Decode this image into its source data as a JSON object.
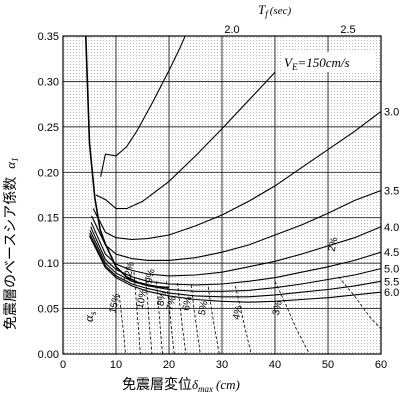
{
  "chart_data": {
    "type": "line",
    "xlabel": "免震層変位",
    "xlabel_symbol": "δ",
    "xlabel_subscript": "max",
    "xlabel_unit": "(cm)",
    "ylabel": "免震層のベースシア係数",
    "ylabel_symbol": "α",
    "ylabel_subscript": "1",
    "top_axis_symbol": "T",
    "top_axis_subscript": "f",
    "top_axis_unit": "(sec)",
    "xlim": [
      0,
      60
    ],
    "ylim": [
      0,
      0.35
    ],
    "x_ticks": [
      0,
      10,
      20,
      30,
      40,
      50,
      60
    ],
    "x_tick_labels": [
      "0",
      "10",
      "20",
      "30",
      "40",
      "50",
      "60"
    ],
    "y_ticks": [
      0,
      0.05,
      0.1,
      0.15,
      0.2,
      0.25,
      0.3,
      0.35
    ],
    "y_tick_labels": [
      "0.00",
      "0.05",
      "0.10",
      "0.15",
      "0.20",
      "0.25",
      "0.30",
      "0.35"
    ],
    "grid": true,
    "annotation": {
      "prefix": "V",
      "subscript": "E",
      "text": "=150cm/s"
    },
    "alpha_label": {
      "symbol": "α",
      "subscript": "s"
    },
    "period_lines": [
      {
        "label": "2.0",
        "T": 2.0
      },
      {
        "label": "2.5",
        "T": 2.5
      },
      {
        "label": "3.0",
        "T": 3.0
      },
      {
        "label": "3.5",
        "T": 3.5
      },
      {
        "label": "4.0",
        "T": 4.0
      },
      {
        "label": "4.5",
        "T": 4.5
      },
      {
        "label": "5.0",
        "T": 5.0
      },
      {
        "label": "5.5",
        "T": 5.5
      },
      {
        "label": "6.0",
        "T": 6.0
      }
    ],
    "period_curves": [
      {
        "name": "2.0",
        "x": [
          7.1,
          8,
          10,
          12,
          14,
          17,
          20,
          22,
          25
        ],
        "y": [
          0.195,
          0.22,
          0.218,
          0.228,
          0.246,
          0.278,
          0.312,
          0.336,
          0.376
        ]
      },
      {
        "name": "2.5",
        "x": [
          6.2,
          8,
          10,
          12,
          15,
          20,
          25,
          30,
          35,
          40
        ],
        "y": [
          0.175,
          0.17,
          0.16,
          0.16,
          0.168,
          0.19,
          0.218,
          0.248,
          0.279,
          0.31
        ]
      },
      {
        "name": "3.0",
        "x": [
          5.7,
          8,
          10,
          13,
          16,
          20,
          25,
          30,
          35,
          40,
          45,
          50,
          55,
          60
        ],
        "y": [
          0.16,
          0.134,
          0.128,
          0.126,
          0.127,
          0.131,
          0.141,
          0.153,
          0.168,
          0.185,
          0.205,
          0.225,
          0.245,
          0.267
        ]
      },
      {
        "name": "3.5",
        "x": [
          5.4,
          8,
          10,
          13,
          16,
          20,
          25,
          30,
          35,
          40,
          45,
          50,
          55,
          60
        ],
        "y": [
          0.152,
          0.12,
          0.11,
          0.105,
          0.103,
          0.103,
          0.106,
          0.112,
          0.12,
          0.131,
          0.142,
          0.155,
          0.169,
          0.18
        ]
      },
      {
        "name": "4.0",
        "x": [
          5.3,
          8,
          10,
          13,
          16,
          20,
          25,
          30,
          35,
          40,
          45,
          50,
          55,
          60
        ],
        "y": [
          0.145,
          0.11,
          0.099,
          0.092,
          0.088,
          0.086,
          0.087,
          0.09,
          0.096,
          0.102,
          0.11,
          0.119,
          0.128,
          0.14
        ]
      },
      {
        "name": "4.5",
        "x": [
          5.2,
          8,
          10,
          13,
          16,
          20,
          25,
          30,
          35,
          40,
          45,
          50,
          55,
          60
        ],
        "y": [
          0.14,
          0.104,
          0.093,
          0.085,
          0.08,
          0.077,
          0.076,
          0.077,
          0.08,
          0.084,
          0.09,
          0.096,
          0.103,
          0.112
        ]
      },
      {
        "name": "5.0",
        "x": [
          5.1,
          8,
          10,
          13,
          16,
          20,
          25,
          30,
          35,
          40,
          45,
          50,
          55,
          60
        ],
        "y": [
          0.136,
          0.1,
          0.089,
          0.08,
          0.075,
          0.071,
          0.069,
          0.069,
          0.07,
          0.073,
          0.077,
          0.082,
          0.087,
          0.094
        ]
      },
      {
        "name": "5.5",
        "x": [
          5.0,
          8,
          10,
          13,
          16,
          20,
          25,
          30,
          35,
          40,
          45,
          50,
          55,
          60
        ],
        "y": [
          0.133,
          0.097,
          0.086,
          0.077,
          0.072,
          0.067,
          0.064,
          0.063,
          0.063,
          0.065,
          0.068,
          0.071,
          0.075,
          0.08
        ]
      },
      {
        "name": "6.0",
        "x": [
          5.0,
          8,
          10,
          13,
          16,
          20,
          25,
          30,
          35,
          40,
          45,
          50,
          55,
          60
        ],
        "y": [
          0.13,
          0.095,
          0.084,
          0.075,
          0.069,
          0.064,
          0.06,
          0.058,
          0.057,
          0.058,
          0.06,
          0.062,
          0.065,
          0.068
        ]
      }
    ],
    "envelope_curve": {
      "name": "envelope",
      "x": [
        4.3,
        5,
        6,
        7,
        8,
        10,
        12,
        14,
        16,
        18,
        20
      ],
      "y": [
        0.35,
        0.232,
        0.172,
        0.137,
        0.121,
        0.096,
        0.085,
        0.079,
        0.076,
        0.074,
        0.073
      ]
    },
    "alpha_s_curves": [
      {
        "label": "15%",
        "x": [
          10.6,
          11.0,
          11.4,
          11.8
        ],
        "y": [
          0.065,
          0.045,
          0.025,
          0.0
        ]
      },
      {
        "label": "12%",
        "x": [
          13.4,
          13.8,
          14.2,
          14.6
        ],
        "y": [
          0.09,
          0.06,
          0.03,
          0.0
        ]
      },
      {
        "label": "10%",
        "x": [
          15.6,
          16.0,
          16.4,
          16.8
        ],
        "y": [
          0.085,
          0.055,
          0.025,
          0.0
        ]
      },
      {
        "label": "9%",
        "x": [
          17.6,
          18.0,
          18.4,
          18.8
        ],
        "y": [
          0.08,
          0.055,
          0.025,
          0.0
        ]
      },
      {
        "label": "8%",
        "x": [
          19.5,
          20.0,
          20.5,
          21.0
        ],
        "y": [
          0.08,
          0.055,
          0.025,
          0.0
        ]
      },
      {
        "label": "7%",
        "x": [
          21.6,
          22.1,
          22.6,
          23.2
        ],
        "y": [
          0.078,
          0.052,
          0.026,
          0.0
        ]
      },
      {
        "label": "6%",
        "x": [
          24.2,
          24.7,
          25.3,
          25.9
        ],
        "y": [
          0.076,
          0.05,
          0.025,
          0.0
        ]
      },
      {
        "label": "5%",
        "x": [
          27.4,
          28.0,
          28.7,
          29.5
        ],
        "y": [
          0.074,
          0.05,
          0.025,
          0.0
        ]
      },
      {
        "label": "4%",
        "x": [
          32.5,
          33.5,
          34.5,
          35.5
        ],
        "y": [
          0.075,
          0.05,
          0.025,
          0.0
        ]
      },
      {
        "label": "3%",
        "x": [
          40.0,
          42.0,
          44.0,
          46.5
        ],
        "y": [
          0.08,
          0.055,
          0.028,
          0.0
        ]
      },
      {
        "label": "2%",
        "x": [
          52.0,
          55.0,
          58.0,
          60.0
        ],
        "y": [
          0.085,
          0.064,
          0.04,
          0.028
        ]
      }
    ],
    "alpha_s_label_positions": [
      {
        "label": "15%",
        "x": 10.3,
        "y": 0.055
      },
      {
        "label": "12%",
        "x": 13.0,
        "y": 0.09
      },
      {
        "label": "10%",
        "x": 15.4,
        "y": 0.06
      },
      {
        "label": "9%",
        "x": 17.0,
        "y": 0.085
      },
      {
        "label": "8%",
        "x": 19.2,
        "y": 0.06
      },
      {
        "label": "7%",
        "x": 21.0,
        "y": 0.055
      },
      {
        "label": "6%",
        "x": 24.0,
        "y": 0.055
      },
      {
        "label": "5%",
        "x": 27.0,
        "y": 0.05
      },
      {
        "label": "4%",
        "x": 33.5,
        "y": 0.045
      },
      {
        "label": "3%",
        "x": 41.0,
        "y": 0.05
      },
      {
        "label": "2%",
        "x": 51.5,
        "y": 0.12
      }
    ]
  }
}
